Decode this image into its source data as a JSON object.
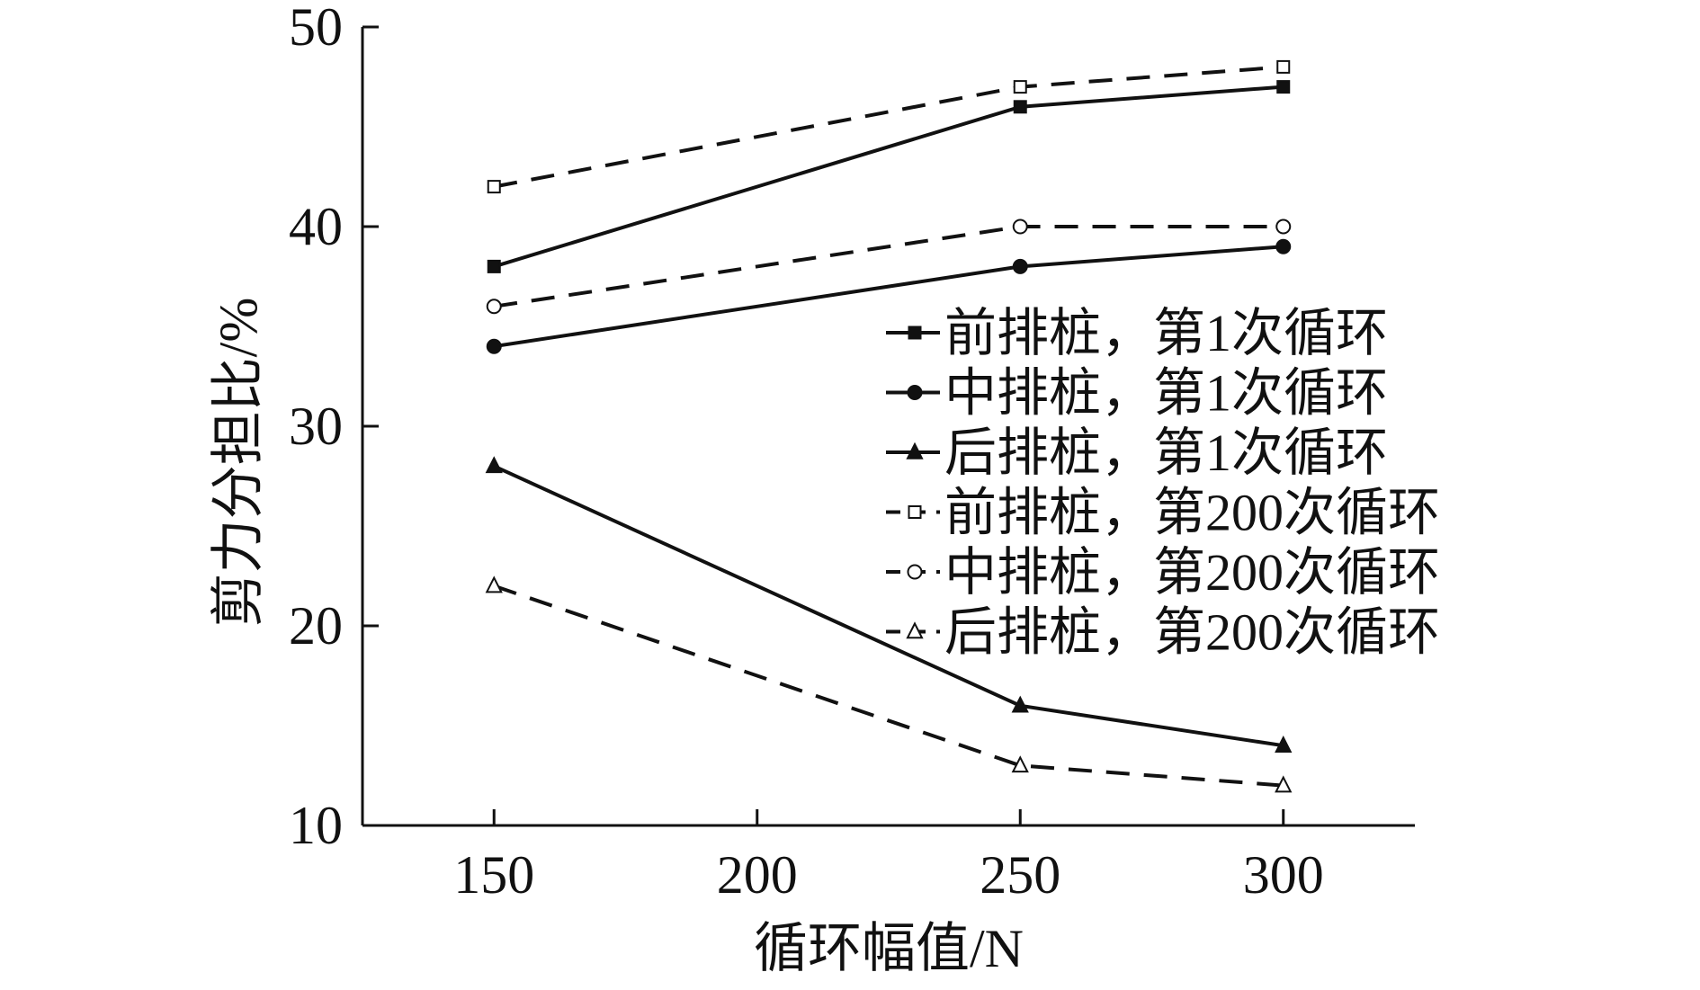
{
  "chart_data": {
    "type": "line",
    "xlabel": "循环幅值/N",
    "ylabel": "剪力分担比/%",
    "xlim": [
      125,
      325
    ],
    "ylim": [
      10,
      50
    ],
    "x_ticks": [
      150,
      200,
      250,
      300
    ],
    "y_ticks": [
      10,
      20,
      30,
      40,
      50
    ],
    "x_tick_labels": [
      "150",
      "200",
      "250",
      "300"
    ],
    "y_tick_labels": [
      "10",
      "20",
      "30",
      "40",
      "50"
    ],
    "grid": false,
    "legend_position": "right-middle",
    "series": [
      {
        "name": "前排桩，第1次循环",
        "marker": "square-filled",
        "line": "solid",
        "x": [
          150,
          250,
          300
        ],
        "y": [
          38,
          46,
          47
        ]
      },
      {
        "name": "中排桩，第1次循环",
        "marker": "circle-filled",
        "line": "solid",
        "x": [
          150,
          250,
          300
        ],
        "y": [
          34,
          38,
          39
        ]
      },
      {
        "name": "后排桩，第1次循环",
        "marker": "triangle-filled",
        "line": "solid",
        "x": [
          150,
          250,
          300
        ],
        "y": [
          28,
          16,
          14
        ]
      },
      {
        "name": "前排桩，第200次循环",
        "marker": "square-open",
        "line": "dashed",
        "x": [
          150,
          250,
          300
        ],
        "y": [
          42,
          47,
          48
        ]
      },
      {
        "name": "中排桩，第200次循环",
        "marker": "circle-open",
        "line": "dashed",
        "x": [
          150,
          250,
          300
        ],
        "y": [
          36,
          40,
          40
        ]
      },
      {
        "name": "后排桩，第200次循环",
        "marker": "triangle-open",
        "line": "dashed",
        "x": [
          150,
          250,
          300
        ],
        "y": [
          22,
          13,
          12
        ]
      }
    ]
  }
}
